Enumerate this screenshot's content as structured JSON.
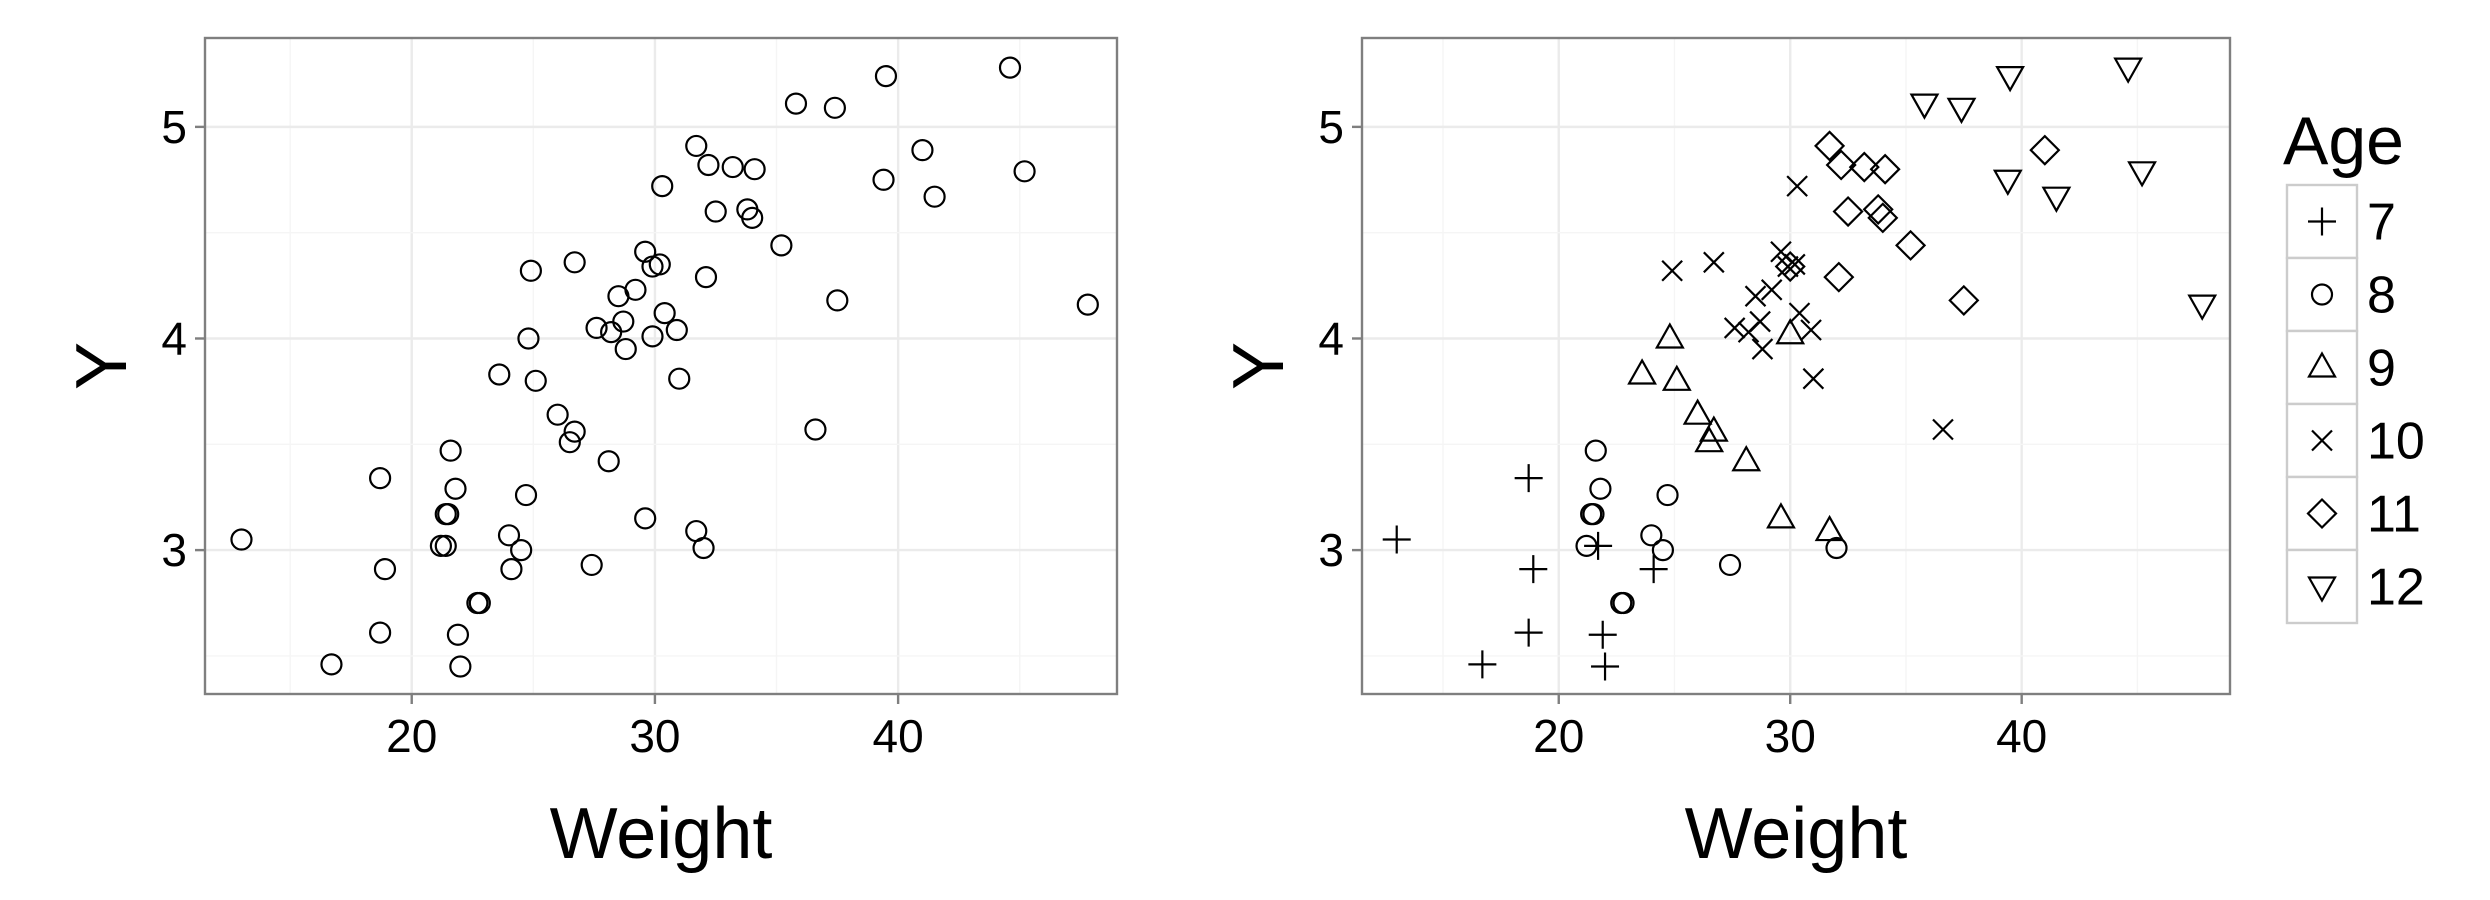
{
  "chart_data": [
    {
      "type": "scatter",
      "xlabel": "Weight",
      "ylabel": "Y",
      "xlim": [
        11.5,
        49
      ],
      "ylim": [
        2.32,
        5.42
      ],
      "xticks": [
        20,
        30,
        40
      ],
      "yticks": [
        3,
        4,
        5
      ],
      "grid": true,
      "series": [
        {
          "marker": "circle",
          "points": [
            [
              13.0,
              3.05
            ],
            [
              16.7,
              2.46
            ],
            [
              18.7,
              2.61
            ],
            [
              18.7,
              3.34
            ],
            [
              18.9,
              2.91
            ],
            [
              21.2,
              3.02
            ],
            [
              21.4,
              3.02
            ],
            [
              21.4,
              3.17
            ],
            [
              21.5,
              3.17
            ],
            [
              21.6,
              3.47
            ],
            [
              21.8,
              3.29
            ],
            [
              21.9,
              2.6
            ],
            [
              22.0,
              2.45
            ],
            [
              22.7,
              2.75
            ],
            [
              22.8,
              2.75
            ],
            [
              23.6,
              3.83
            ],
            [
              24.0,
              3.07
            ],
            [
              24.1,
              2.91
            ],
            [
              24.5,
              3.0
            ],
            [
              24.7,
              3.26
            ],
            [
              24.8,
              4.0
            ],
            [
              24.9,
              4.32
            ],
            [
              25.1,
              3.8
            ],
            [
              26.0,
              3.64
            ],
            [
              26.5,
              3.51
            ],
            [
              26.7,
              3.56
            ],
            [
              26.7,
              4.36
            ],
            [
              27.4,
              2.93
            ],
            [
              27.6,
              4.05
            ],
            [
              28.1,
              3.42
            ],
            [
              28.2,
              4.03
            ],
            [
              28.5,
              4.2
            ],
            [
              28.7,
              4.08
            ],
            [
              28.8,
              3.95
            ],
            [
              29.2,
              4.23
            ],
            [
              29.6,
              3.15
            ],
            [
              29.6,
              4.41
            ],
            [
              29.9,
              4.34
            ],
            [
              29.9,
              4.01
            ],
            [
              30.2,
              4.35
            ],
            [
              30.3,
              4.72
            ],
            [
              30.4,
              4.12
            ],
            [
              30.9,
              4.04
            ],
            [
              31.0,
              3.81
            ],
            [
              31.7,
              4.91
            ],
            [
              31.7,
              3.09
            ],
            [
              32.0,
              3.01
            ],
            [
              32.1,
              4.29
            ],
            [
              32.2,
              4.82
            ],
            [
              32.5,
              4.6
            ],
            [
              33.2,
              4.81
            ],
            [
              33.8,
              4.61
            ],
            [
              34.0,
              4.57
            ],
            [
              34.1,
              4.8
            ],
            [
              35.2,
              4.44
            ],
            [
              35.8,
              5.11
            ],
            [
              36.6,
              3.57
            ],
            [
              37.4,
              5.09
            ],
            [
              37.5,
              4.18
            ],
            [
              39.4,
              4.75
            ],
            [
              39.5,
              5.24
            ],
            [
              41.0,
              4.89
            ],
            [
              41.5,
              4.67
            ],
            [
              44.6,
              5.28
            ],
            [
              45.2,
              4.79
            ],
            [
              47.8,
              4.16
            ]
          ]
        }
      ]
    },
    {
      "type": "scatter",
      "xlabel": "Weight",
      "ylabel": "Y",
      "xlim": [
        11.5,
        49
      ],
      "ylim": [
        2.32,
        5.42
      ],
      "xticks": [
        20,
        30,
        40
      ],
      "yticks": [
        3,
        4,
        5
      ],
      "grid": true,
      "legend": {
        "title": "Age",
        "position": "right"
      },
      "series": [
        {
          "name": "7",
          "marker": "plus",
          "points": [
            [
              13.0,
              3.05
            ],
            [
              16.7,
              2.46
            ],
            [
              18.7,
              2.61
            ],
            [
              18.7,
              3.34
            ],
            [
              18.9,
              2.91
            ],
            [
              21.7,
              3.02
            ],
            [
              21.9,
              2.6
            ],
            [
              22.0,
              2.45
            ],
            [
              24.1,
              2.91
            ]
          ]
        },
        {
          "name": "8",
          "marker": "circle",
          "points": [
            [
              21.2,
              3.02
            ],
            [
              21.4,
              3.17
            ],
            [
              21.5,
              3.17
            ],
            [
              21.6,
              3.47
            ],
            [
              21.8,
              3.29
            ],
            [
              22.7,
              2.75
            ],
            [
              22.8,
              2.75
            ],
            [
              24.0,
              3.07
            ],
            [
              24.5,
              3.0
            ],
            [
              24.7,
              3.26
            ],
            [
              27.4,
              2.93
            ],
            [
              32.0,
              3.01
            ]
          ]
        },
        {
          "name": "9",
          "marker": "triangle-up",
          "points": [
            [
              23.6,
              3.83
            ],
            [
              24.8,
              4.0
            ],
            [
              25.1,
              3.8
            ],
            [
              26.0,
              3.64
            ],
            [
              26.5,
              3.51
            ],
            [
              26.7,
              3.56
            ],
            [
              28.1,
              3.42
            ],
            [
              29.6,
              3.15
            ],
            [
              30.0,
              4.02
            ],
            [
              31.7,
              3.09
            ]
          ]
        },
        {
          "name": "10",
          "marker": "x",
          "points": [
            [
              24.9,
              4.32
            ],
            [
              26.7,
              4.36
            ],
            [
              27.6,
              4.05
            ],
            [
              28.2,
              4.03
            ],
            [
              28.5,
              4.2
            ],
            [
              28.7,
              4.08
            ],
            [
              28.8,
              3.95
            ],
            [
              29.2,
              4.23
            ],
            [
              29.6,
              4.41
            ],
            [
              29.9,
              4.34
            ],
            [
              30.2,
              4.35
            ],
            [
              30.3,
              4.72
            ],
            [
              30.4,
              4.12
            ],
            [
              30.9,
              4.04
            ],
            [
              31.0,
              3.81
            ],
            [
              36.6,
              3.57
            ]
          ]
        },
        {
          "name": "11",
          "marker": "diamond",
          "points": [
            [
              30.0,
              4.34
            ],
            [
              31.7,
              4.91
            ],
            [
              32.1,
              4.29
            ],
            [
              32.2,
              4.82
            ],
            [
              32.5,
              4.6
            ],
            [
              33.2,
              4.81
            ],
            [
              33.8,
              4.61
            ],
            [
              34.0,
              4.57
            ],
            [
              34.1,
              4.8
            ],
            [
              35.2,
              4.44
            ],
            [
              37.5,
              4.18
            ],
            [
              41.0,
              4.89
            ]
          ]
        },
        {
          "name": "12",
          "marker": "triangle-down",
          "points": [
            [
              35.8,
              5.11
            ],
            [
              37.4,
              5.09
            ],
            [
              39.4,
              4.75
            ],
            [
              39.5,
              5.24
            ],
            [
              41.5,
              4.67
            ],
            [
              44.6,
              5.28
            ],
            [
              45.2,
              4.79
            ],
            [
              47.8,
              4.16
            ]
          ]
        }
      ]
    }
  ]
}
